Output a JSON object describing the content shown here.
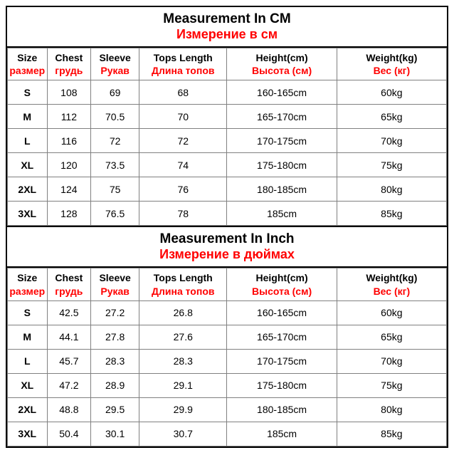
{
  "section_cm": {
    "title_en": "Measurement In CM",
    "title_ru": "Измерение в см"
  },
  "section_inch": {
    "title_en": "Measurement In Inch",
    "title_ru": "Измерение в дюймах"
  },
  "columns": [
    {
      "en": "Size",
      "ru": "размер"
    },
    {
      "en": "Chest",
      "ru": "грудь"
    },
    {
      "en": "Sleeve",
      "ru": "Рукав"
    },
    {
      "en": "Tops Length",
      "ru": "Длина топов"
    },
    {
      "en": "Height(cm)",
      "ru": "Высота (см)"
    },
    {
      "en": "Weight(kg)",
      "ru": "Вес (кг)"
    }
  ],
  "rows_cm": [
    {
      "size": "S",
      "chest": "108",
      "sleeve": "69",
      "tops": "68",
      "height": "160-165cm",
      "weight": "60kg"
    },
    {
      "size": "M",
      "chest": "112",
      "sleeve": "70.5",
      "tops": "70",
      "height": "165-170cm",
      "weight": "65kg"
    },
    {
      "size": "L",
      "chest": "116",
      "sleeve": "72",
      "tops": "72",
      "height": "170-175cm",
      "weight": "70kg"
    },
    {
      "size": "XL",
      "chest": "120",
      "sleeve": "73.5",
      "tops": "74",
      "height": "175-180cm",
      "weight": "75kg"
    },
    {
      "size": "2XL",
      "chest": "124",
      "sleeve": "75",
      "tops": "76",
      "height": "180-185cm",
      "weight": "80kg"
    },
    {
      "size": "3XL",
      "chest": "128",
      "sleeve": "76.5",
      "tops": "78",
      "height": "185cm",
      "weight": "85kg"
    }
  ],
  "rows_inch": [
    {
      "size": "S",
      "chest": "42.5",
      "sleeve": "27.2",
      "tops": "26.8",
      "height": "160-165cm",
      "weight": "60kg"
    },
    {
      "size": "M",
      "chest": "44.1",
      "sleeve": "27.8",
      "tops": "27.6",
      "height": "165-170cm",
      "weight": "65kg"
    },
    {
      "size": "L",
      "chest": "45.7",
      "sleeve": "28.3",
      "tops": "28.3",
      "height": "170-175cm",
      "weight": "70kg"
    },
    {
      "size": "XL",
      "chest": "47.2",
      "sleeve": "28.9",
      "tops": "29.1",
      "height": "175-180cm",
      "weight": "75kg"
    },
    {
      "size": "2XL",
      "chest": "48.8",
      "sleeve": "29.5",
      "tops": "29.9",
      "height": "180-185cm",
      "weight": "80kg"
    },
    {
      "size": "3XL",
      "chest": "50.4",
      "sleeve": "30.1",
      "tops": "30.7",
      "height": "185cm",
      "weight": "85kg"
    }
  ],
  "colors": {
    "accent": "#ff0000",
    "border_outer": "#000000",
    "border_inner": "#808080",
    "background": "#ffffff"
  }
}
